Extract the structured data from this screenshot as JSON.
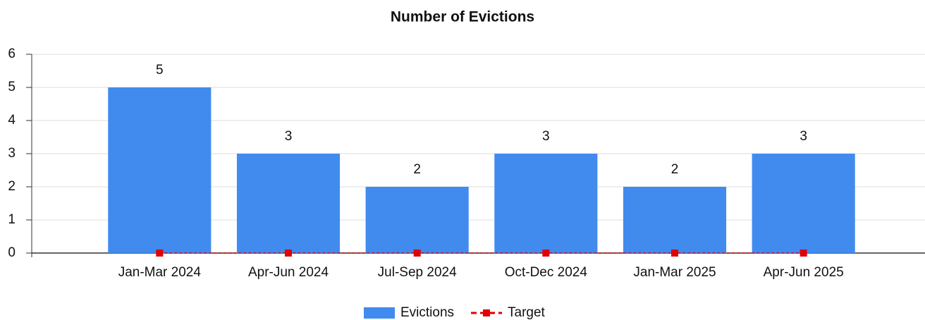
{
  "chart_data": {
    "type": "bar",
    "title": "Number of Evictions",
    "categories": [
      "Jan-Mar 2024",
      "Apr-Jun 2024",
      "Jul-Sep 2024",
      "Oct-Dec 2024",
      "Jan-Mar 2025",
      "Apr-Jun 2025"
    ],
    "series": [
      {
        "name": "Evictions",
        "type": "bar",
        "color": "#418bef",
        "values": [
          5,
          3,
          2,
          3,
          2,
          3
        ]
      },
      {
        "name": "Target",
        "type": "line",
        "color": "#e00000",
        "values": [
          0,
          0,
          0,
          0,
          0,
          0
        ]
      }
    ],
    "ylim": [
      0,
      6
    ],
    "yticks": [
      0,
      1,
      2,
      3,
      4,
      5,
      6
    ],
    "grid": true,
    "legend": "bottom"
  }
}
